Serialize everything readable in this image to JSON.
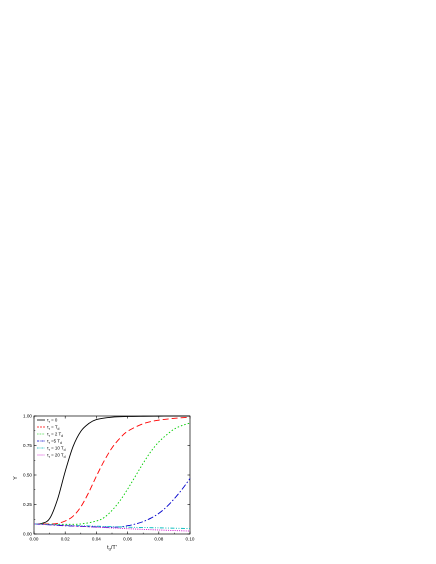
{
  "chart_data": {
    "type": "line",
    "xlabel": "t_d/T'",
    "ylabel": "Y",
    "xlim": [
      0.0,
      0.1
    ],
    "ylim": [
      0.0,
      1.0
    ],
    "x_ticks": [
      "0.00",
      "0.02",
      "0.04",
      "0.06",
      "0.08",
      "0.10"
    ],
    "y_ticks": [
      "0.00",
      "0.25",
      "0.50",
      "0.75",
      "1.00"
    ],
    "grid": false,
    "legend_position": "top-left",
    "series": [
      {
        "name": "τ_r = 0",
        "color": "#000000",
        "dash": "solid",
        "x": [
          0.0,
          0.005,
          0.01,
          0.015,
          0.02,
          0.025,
          0.03,
          0.035,
          0.04,
          0.05,
          0.06,
          0.07,
          0.08,
          0.09,
          0.1
        ],
        "y": [
          0.085,
          0.09,
          0.13,
          0.29,
          0.53,
          0.74,
          0.87,
          0.935,
          0.97,
          0.99,
          0.996,
          0.998,
          0.999,
          1.0,
          1.0
        ]
      },
      {
        "name": "τ_r = T_d",
        "color": "#ff0000",
        "dash": "6,3",
        "x": [
          0.0,
          0.005,
          0.01,
          0.015,
          0.02,
          0.025,
          0.03,
          0.035,
          0.04,
          0.045,
          0.05,
          0.055,
          0.06,
          0.07,
          0.08,
          0.09,
          0.1
        ],
        "y": [
          0.085,
          0.085,
          0.085,
          0.09,
          0.11,
          0.15,
          0.23,
          0.35,
          0.49,
          0.62,
          0.73,
          0.81,
          0.87,
          0.935,
          0.965,
          0.98,
          0.99
        ]
      },
      {
        "name": "τ_r = 2 T_d",
        "color": "#00cc00",
        "dash": "1.5,2",
        "x": [
          0.0,
          0.01,
          0.02,
          0.03,
          0.04,
          0.045,
          0.05,
          0.055,
          0.06,
          0.065,
          0.07,
          0.075,
          0.08,
          0.085,
          0.09,
          0.095,
          0.1
        ],
        "y": [
          0.085,
          0.083,
          0.082,
          0.085,
          0.11,
          0.14,
          0.2,
          0.28,
          0.38,
          0.49,
          0.6,
          0.7,
          0.78,
          0.84,
          0.89,
          0.92,
          0.94
        ]
      },
      {
        "name": "τ_r = 5 T_d",
        "color": "#0000cc",
        "dash": "6,2,1.5,2",
        "x": [
          0.0,
          0.01,
          0.02,
          0.03,
          0.04,
          0.05,
          0.055,
          0.06,
          0.065,
          0.07,
          0.075,
          0.08,
          0.085,
          0.09,
          0.095,
          0.1
        ],
        "y": [
          0.085,
          0.078,
          0.07,
          0.065,
          0.06,
          0.058,
          0.06,
          0.07,
          0.085,
          0.105,
          0.135,
          0.175,
          0.23,
          0.3,
          0.38,
          0.47
        ]
      },
      {
        "name": "τ_r = 10 T_d",
        "color": "#00bbbb",
        "dash": "4,1.5,1,1.5,1,1.5",
        "x": [
          0.0,
          0.02,
          0.04,
          0.06,
          0.08,
          0.1
        ],
        "y": [
          0.085,
          0.075,
          0.066,
          0.058,
          0.052,
          0.046
        ]
      },
      {
        "name": "τ_r = 20 T_d",
        "color": "#cc00cc",
        "dash": "1,1.2",
        "x": [
          0.0,
          0.02,
          0.04,
          0.06,
          0.08,
          0.1
        ],
        "y": [
          0.085,
          0.072,
          0.058,
          0.045,
          0.034,
          0.025
        ]
      }
    ]
  },
  "legend_labels": {
    "l0": {
      "pre": "τ",
      "sub": "r",
      "post": " = 0",
      "post_sub": ""
    },
    "l1": {
      "pre": "τ",
      "sub": "r",
      "post": " = T",
      "post_sub": "d"
    },
    "l2": {
      "pre": "τ",
      "sub": "r",
      "post": " = 2 T",
      "post_sub": "d"
    },
    "l3": {
      "pre": "τ",
      "sub": "r",
      "post": " =5 T",
      "post_sub": "d"
    },
    "l4": {
      "pre": "τ",
      "sub": "r",
      "post": " = 10 T",
      "post_sub": "d"
    },
    "l5": {
      "pre": "τ",
      "sub": "r",
      "post": " = 20 T",
      "post_sub": "d"
    }
  },
  "axis_titles": {
    "y": "Y",
    "x_main": "t",
    "x_sub": "d",
    "x_rest": "/T'"
  }
}
